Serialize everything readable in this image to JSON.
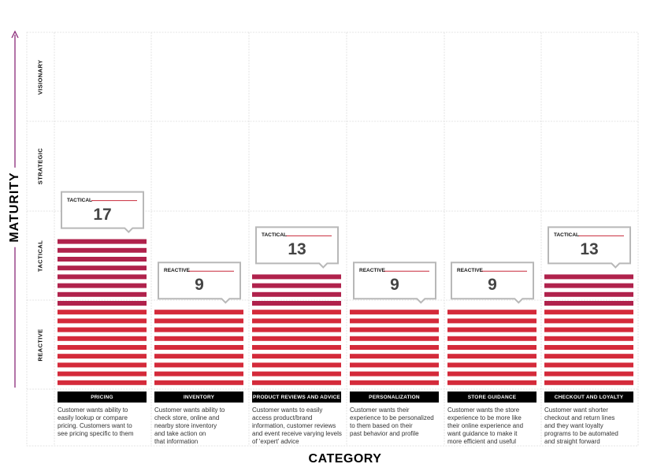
{
  "chart_data": {
    "type": "bar",
    "xlabel": "CATEGORY",
    "ylabel": "MATURITY",
    "levels": [
      "VISIONARY",
      "STRATEGIC",
      "TACTICAL",
      "REACTIVE"
    ],
    "categories": [
      "PRICING",
      "INVENTORY",
      "PRODUCT REVIEWS AND ADVICE",
      "PERSONALIZATION",
      "STORE GUIDANCE",
      "CHECKOUT AND LOYALTY"
    ],
    "values": [
      17,
      9,
      13,
      9,
      9,
      13
    ],
    "value_labels": [
      "17",
      "9",
      "13",
      "9",
      "9",
      "13"
    ],
    "maturity": [
      "TACTICAL",
      "REACTIVE",
      "TACTICAL",
      "REACTIVE",
      "REACTIVE",
      "TACTICAL"
    ],
    "descriptions": [
      "Customer wants ability to\neasily lookup or compare\npricing. Customers want to\nsee pricing specific to them",
      "Customer wants ability to\ncheck store, online and\nnearby store inventory\nand take action on\nthat information",
      "Customer wants to easily\naccess product/brand\ninformation, customer reviews\nand event receive varying levels\nof 'expert' advice",
      "Customer wants their\nexperience to be personalized\nto them based on their\npast behavior and profile",
      "Customer wants the store\nexperience to be more like\ntheir online experience and\nwant guidance to make it\nmore efficient and useful",
      "Customer want shorter\ncheckout and return lines\nand they want loyalty\nprograms to be automated\nand straight forward"
    ],
    "colors": {
      "reactive": "#d42a3a",
      "tactical": "#b0224c",
      "axis": "#8a2a78"
    },
    "grid": true,
    "legend": "none"
  }
}
